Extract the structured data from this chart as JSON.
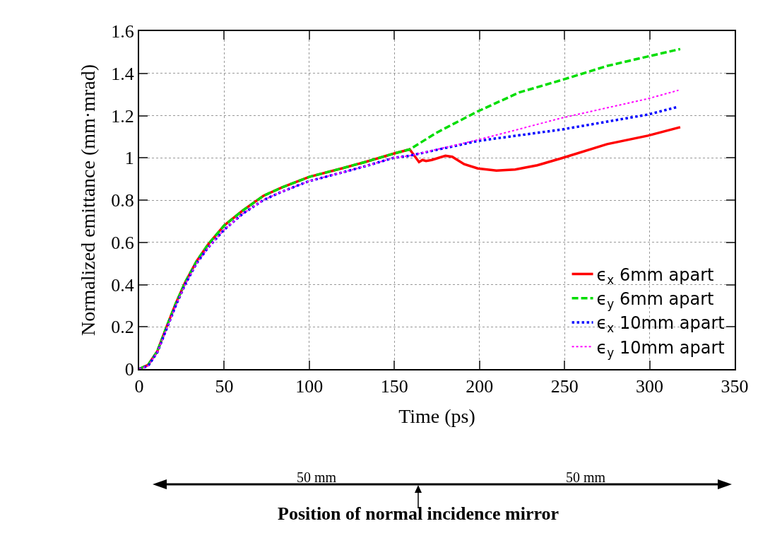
{
  "chart_data": {
    "type": "line",
    "xlabel": "Time (ps)",
    "ylabel": "Normalized emittance (mm·mrad)",
    "xlim": [
      0,
      350
    ],
    "xticks": [
      0,
      50,
      100,
      150,
      200,
      250,
      300,
      350
    ],
    "ylim": [
      0,
      1.6
    ],
    "yticks": [
      0,
      0.2,
      0.4,
      0.6,
      0.8,
      1,
      1.2,
      1.4,
      1.6
    ],
    "grid": true,
    "legend": "bottom right",
    "marker": "none",
    "annotations": [
      "50 mm",
      "50 mm",
      "Position of normal incidence mirror"
    ],
    "series": [
      {
        "name": "ϵ$_{x}$ 6mm apart",
        "color": "#ff0000",
        "line_style": "solid",
        "x": [
          0,
          5.3,
          10.7,
          16.1,
          21.5,
          27,
          33.7,
          40.5,
          50,
          60.8,
          73,
          83.9,
          100,
          119,
          132.7,
          149.6,
          159,
          164.5,
          166.5,
          168.6,
          172,
          180,
          184,
          191,
          199,
          210,
          221,
          234,
          249,
          275,
          299,
          318
        ],
        "values": [
          0,
          0.02,
          0.085,
          0.2,
          0.31,
          0.41,
          0.51,
          0.59,
          0.68,
          0.75,
          0.82,
          0.86,
          0.91,
          0.95,
          0.98,
          1.02,
          1.04,
          0.98,
          0.99,
          0.985,
          0.99,
          1.01,
          1.005,
          0.97,
          0.95,
          0.94,
          0.945,
          0.965,
          1,
          1.065,
          1.105,
          1.145
        ]
      },
      {
        "name": "ϵ$_{y}$ 6mm apart",
        "color": "#00dd00",
        "line_style": "dashed",
        "x": [
          0,
          5.3,
          10.7,
          16.1,
          21.5,
          27,
          33.7,
          40.5,
          50,
          60.8,
          73,
          83.9,
          100,
          119,
          132.7,
          149.6,
          159,
          175,
          199,
          223.5,
          249,
          275,
          299,
          318
        ],
        "values": [
          0,
          0.02,
          0.085,
          0.2,
          0.31,
          0.41,
          0.51,
          0.59,
          0.68,
          0.75,
          0.82,
          0.86,
          0.91,
          0.95,
          0.98,
          1.02,
          1.04,
          1.12,
          1.22,
          1.31,
          1.37,
          1.435,
          1.48,
          1.515
        ]
      },
      {
        "name": "ϵ$_{x}$ 10mm apart",
        "color": "#0000ff",
        "line_style": "dotted",
        "x": [
          0,
          5.3,
          10.7,
          16.1,
          21.5,
          27,
          33.7,
          40.5,
          50,
          60.8,
          73,
          83.9,
          100,
          119,
          132.7,
          149.6,
          159,
          199,
          249,
          299,
          316
        ],
        "values": [
          0,
          0.015,
          0.08,
          0.19,
          0.3,
          0.4,
          0.5,
          0.575,
          0.66,
          0.735,
          0.8,
          0.84,
          0.89,
          0.93,
          0.96,
          1,
          1.01,
          1.08,
          1.135,
          1.205,
          1.24
        ]
      },
      {
        "name": "ϵ$_{y}$ 10mm apart",
        "color": "#ff00ff",
        "line_style": "dotted",
        "x": [
          0,
          5.3,
          10.7,
          16.1,
          21.5,
          27,
          33.7,
          40.5,
          50,
          60.8,
          73,
          83.9,
          100,
          119,
          132.7,
          149.6,
          159,
          199,
          249,
          299,
          317
        ],
        "values": [
          0,
          0.015,
          0.08,
          0.19,
          0.3,
          0.4,
          0.5,
          0.575,
          0.66,
          0.735,
          0.8,
          0.84,
          0.89,
          0.93,
          0.96,
          1,
          1.01,
          1.085,
          1.19,
          1.28,
          1.32
        ]
      }
    ]
  }
}
